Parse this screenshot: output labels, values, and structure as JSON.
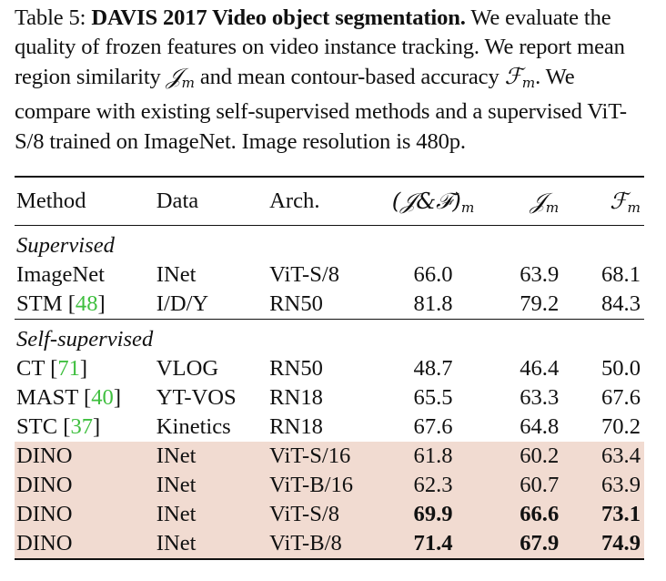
{
  "caption": {
    "label": "Table 5:",
    "title": "DAVIS 2017 Video object segmentation.",
    "text_1": "We evaluate the quality of frozen features on video instance tracking. We report mean region similarity",
    "sym_j": "𝒥",
    "sub_m": "m",
    "text_2": "and mean contour-based accuracy",
    "sym_f": "ℱ",
    "text_3": ". We compare with existing self-supervised methods and a supervised ViT-S/8 trained on ImageNet. Image resolution is 480p."
  },
  "table": {
    "headers": {
      "method": "Method",
      "data": "Data",
      "arch": "Arch.",
      "jf": "(𝒥&ℱ)",
      "j": "𝒥",
      "f": "ℱ",
      "sub": "m"
    },
    "sections": {
      "supervised": "Supervised",
      "self_supervised": "Self-supervised"
    },
    "rows": [
      {
        "method": "ImageNet",
        "cite": "",
        "data": "INet",
        "arch": "ViT-S/8",
        "jf": "66.0",
        "j": "63.9",
        "f": "68.1"
      },
      {
        "method": "STM",
        "cite": "48",
        "data": "I/D/Y",
        "arch": "RN50",
        "jf": "81.8",
        "j": "79.2",
        "f": "84.3"
      },
      {
        "method": "CT",
        "cite": "71",
        "data": "VLOG",
        "arch": "RN50",
        "jf": "48.7",
        "j": "46.4",
        "f": "50.0"
      },
      {
        "method": "MAST",
        "cite": "40",
        "data": "YT-VOS",
        "arch": "RN18",
        "jf": "65.5",
        "j": "63.3",
        "f": "67.6"
      },
      {
        "method": "STC",
        "cite": "37",
        "data": "Kinetics",
        "arch": "RN18",
        "jf": "67.6",
        "j": "64.8",
        "f": "70.2"
      },
      {
        "method": "DINO",
        "cite": "",
        "data": "INet",
        "arch": "ViT-S/16",
        "jf": "61.8",
        "j": "60.2",
        "f": "63.4"
      },
      {
        "method": "DINO",
        "cite": "",
        "data": "INet",
        "arch": "ViT-B/16",
        "jf": "62.3",
        "j": "60.7",
        "f": "63.9"
      },
      {
        "method": "DINO",
        "cite": "",
        "data": "INet",
        "arch": "ViT-S/8",
        "jf": "69.9",
        "j": "66.6",
        "f": "73.1"
      },
      {
        "method": "DINO",
        "cite": "",
        "data": "INet",
        "arch": "ViT-B/8",
        "jf": "71.4",
        "j": "67.9",
        "f": "74.9"
      }
    ]
  },
  "colors": {
    "highlight": "#f1dbd1",
    "citation": "#3fbf3f"
  }
}
